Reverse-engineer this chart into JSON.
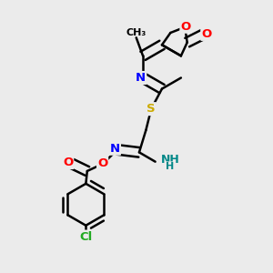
{
  "bg_color": "#ebebeb",
  "bond_color": "#000000",
  "lw": 1.8,
  "dbo": 0.018,
  "fs": 9.5,
  "colors": {
    "N": "#0000ff",
    "O": "#ff0000",
    "S": "#ccaa00",
    "Cl": "#22aa22",
    "NH": "#008888",
    "C": "#000000"
  },
  "figsize": [
    3.0,
    3.0
  ],
  "dpi": 100
}
